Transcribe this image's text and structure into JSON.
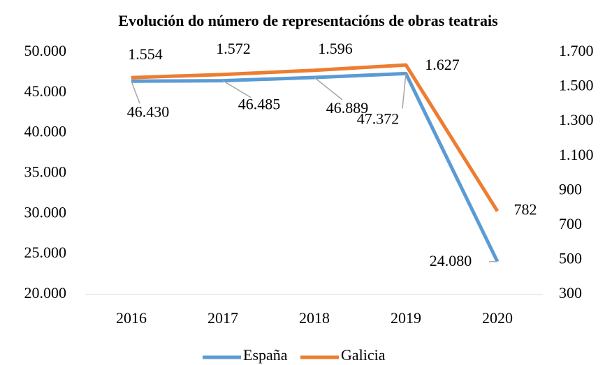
{
  "chart_data": {
    "type": "line",
    "title": "Evolución do número de representacións de obras teatrais",
    "categories": [
      "2016",
      "2017",
      "2018",
      "2019",
      "2020"
    ],
    "series": [
      {
        "name": "España",
        "color": "#5b9bd5",
        "values": [
          46430,
          46485,
          46889,
          47372,
          24080
        ],
        "value_labels": [
          "46.430",
          "46.485",
          "46.889",
          "47.372",
          "24.080"
        ]
      },
      {
        "name": "Galicia",
        "color": "#ed7d31",
        "axis": "y2",
        "values": [
          1554,
          1572,
          1596,
          1627,
          782
        ],
        "value_labels": [
          "1.554",
          "1.572",
          "1.596",
          "1.627",
          "782"
        ]
      }
    ],
    "ylim": [
      20000,
      50000
    ],
    "yticks": [
      {
        "value": 20000,
        "label": "20.000"
      },
      {
        "value": 25000,
        "label": "25.000"
      },
      {
        "value": 30000,
        "label": "30.000"
      },
      {
        "value": 35000,
        "label": "35.000"
      },
      {
        "value": 40000,
        "label": "40.000"
      },
      {
        "value": 45000,
        "label": "45.000"
      },
      {
        "value": 50000,
        "label": "50.000"
      }
    ],
    "y2lim": [
      300,
      1700
    ],
    "y2ticks": [
      300,
      500,
      700,
      900,
      {
        "value": 1100,
        "label": "1.100"
      },
      {
        "value": 1300,
        "label": "1.300"
      },
      {
        "value": 1500,
        "label": "1.500"
      },
      {
        "value": 1700,
        "label": "1.700"
      }
    ],
    "legend": "bottom"
  }
}
